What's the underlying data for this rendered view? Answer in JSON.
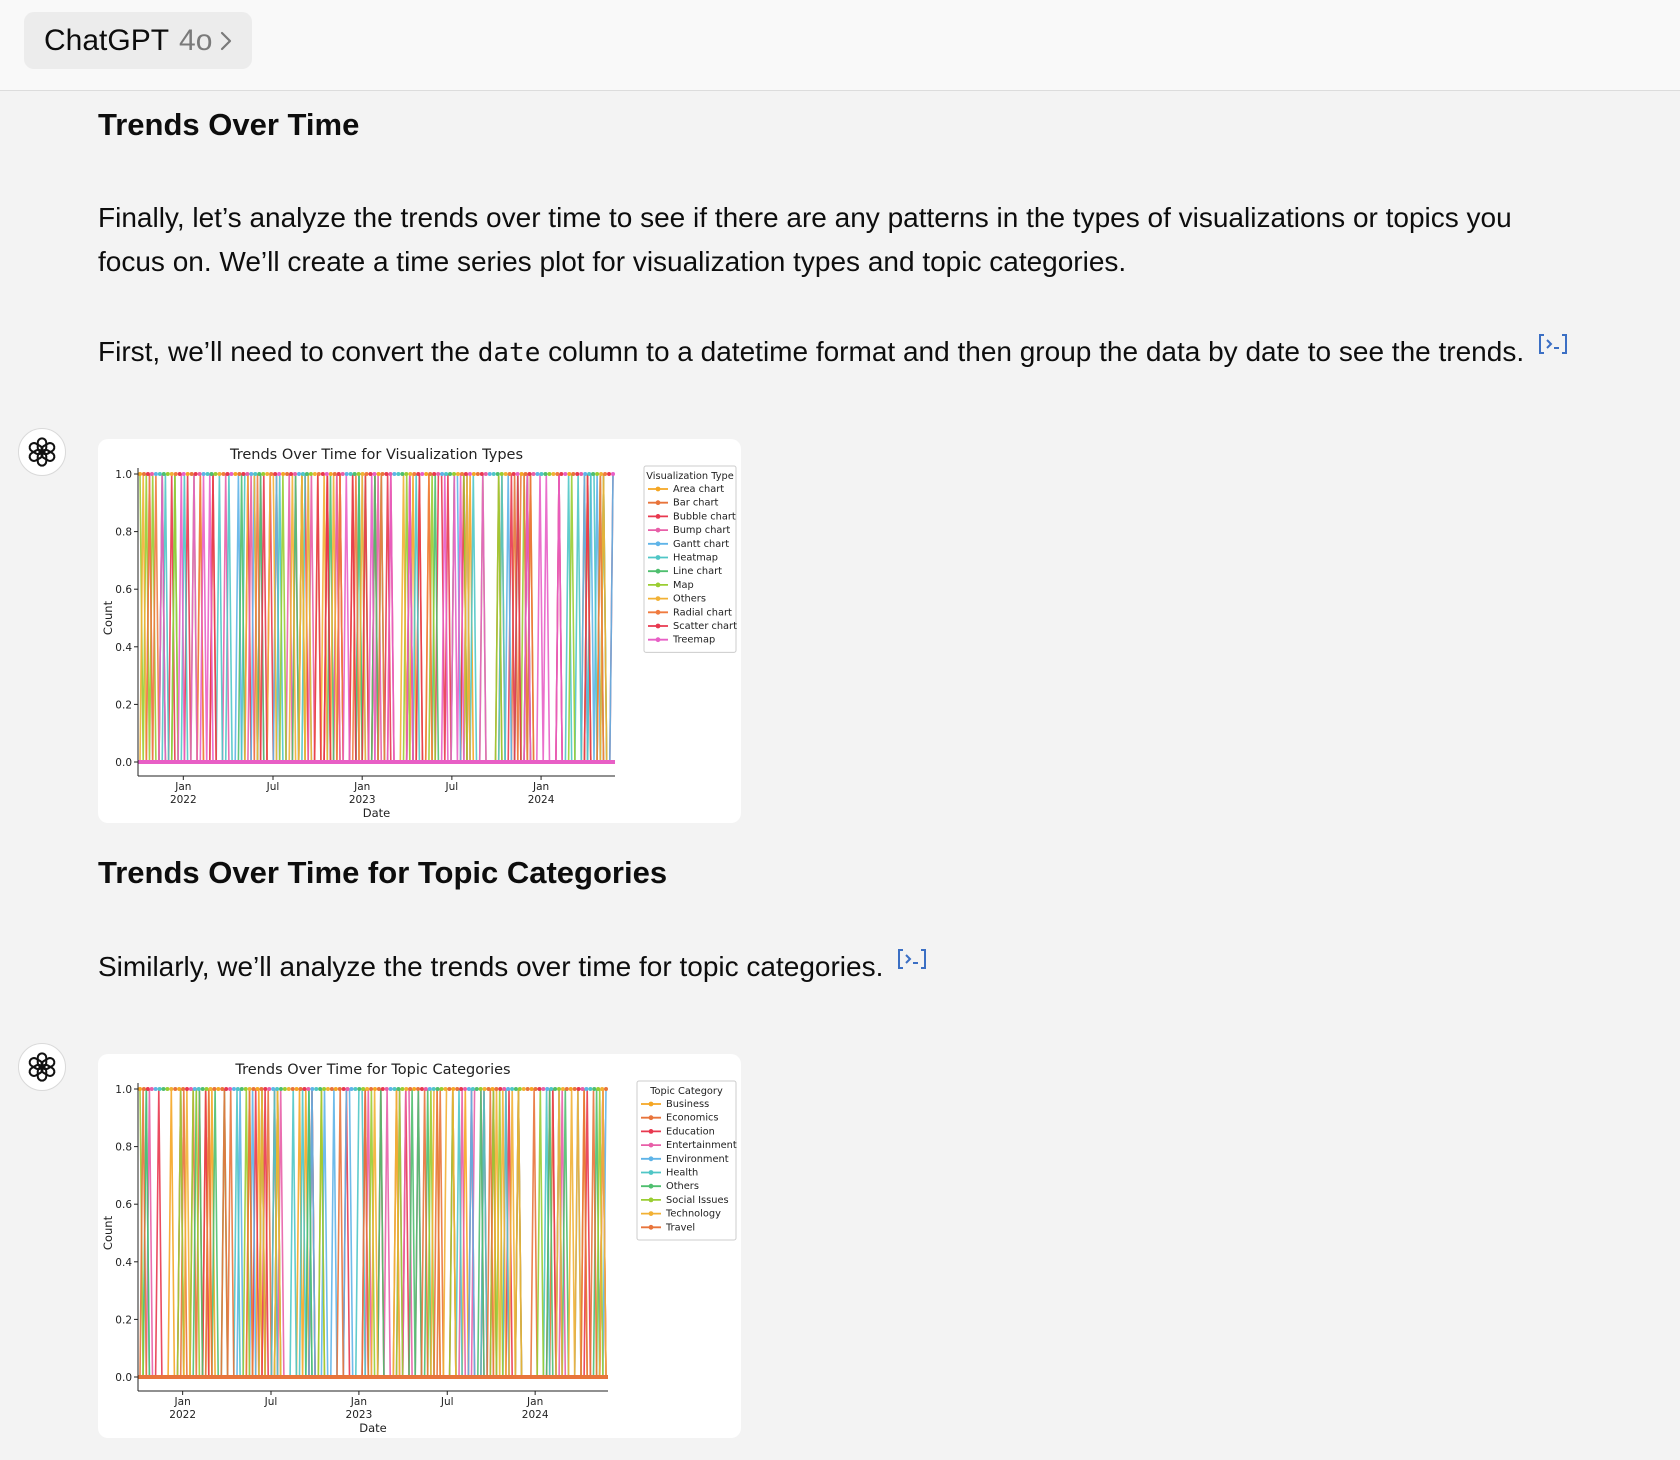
{
  "header": {
    "model_name": "ChatGPT",
    "model_version": "4o"
  },
  "message": {
    "heading1": "Trends Over Time",
    "para1_line1": "Finally, let’s analyze the trends over time to see if there are any patterns in the types of visualizations or topics you",
    "para1_line2": "focus on. We’ll create a time series plot for visualization types and topic categories.",
    "para2_before": "First, we’ll need to convert the ",
    "para2_code": "date",
    "para2_after": " column to a datetime format and then group the data by date to see the trends.",
    "heading2": "Trends Over Time for Topic Categories",
    "para3": "Similarly, we’ll analyze the trends over time for topic categories."
  },
  "icons": {
    "avatar": "openai-logo-icon",
    "code_link": "code-interpreter-icon",
    "chevron": "chevron-right-icon"
  },
  "chart_data": [
    {
      "type": "line",
      "title": "Trends Over Time for Visualization Types",
      "xlabel": "Date",
      "ylabel": "Count",
      "ylim": [
        0,
        1
      ],
      "yticks": [
        "0.0",
        "0.2",
        "0.4",
        "0.6",
        "0.8",
        "1.0"
      ],
      "xticks": [
        {
          "major": "Jan",
          "minor": "2022"
        },
        {
          "major": "Jul",
          "minor": ""
        },
        {
          "major": "Jan",
          "minor": "2023"
        },
        {
          "major": "Jul",
          "minor": ""
        },
        {
          "major": "Jan",
          "minor": "2024"
        }
      ],
      "legend_title": "Visualization Type",
      "legend_position": "right-outside",
      "series": [
        {
          "name": "Area chart",
          "color": "#f5a623"
        },
        {
          "name": "Bar chart",
          "color": "#e8743b"
        },
        {
          "name": "Bubble chart",
          "color": "#e8384f"
        },
        {
          "name": "Bump chart",
          "color": "#e85fa8"
        },
        {
          "name": "Gantt chart",
          "color": "#5fb4e8"
        },
        {
          "name": "Heatmap",
          "color": "#4fc6c6"
        },
        {
          "name": "Line chart",
          "color": "#4fbf6f"
        },
        {
          "name": "Map",
          "color": "#9acd32"
        },
        {
          "name": "Others",
          "color": "#f2b134"
        },
        {
          "name": "Radial chart",
          "color": "#f07b3f"
        },
        {
          "name": "Scatter chart",
          "color": "#e8384f"
        },
        {
          "name": "Treemap",
          "color": "#e85fc6"
        }
      ]
    },
    {
      "type": "line",
      "title": "Trends Over Time for Topic Categories",
      "xlabel": "Date",
      "ylabel": "Count",
      "ylim": [
        0,
        1
      ],
      "yticks": [
        "0.0",
        "0.2",
        "0.4",
        "0.6",
        "0.8",
        "1.0"
      ],
      "xticks": [
        {
          "major": "Jan",
          "minor": "2022"
        },
        {
          "major": "Jul",
          "minor": ""
        },
        {
          "major": "Jan",
          "minor": "2023"
        },
        {
          "major": "Jul",
          "minor": ""
        },
        {
          "major": "Jan",
          "minor": "2024"
        }
      ],
      "legend_title": "Topic Category",
      "legend_position": "right-outside",
      "series": [
        {
          "name": "Business",
          "color": "#f5a623"
        },
        {
          "name": "Economics",
          "color": "#e8743b"
        },
        {
          "name": "Education",
          "color": "#e8384f"
        },
        {
          "name": "Entertainment",
          "color": "#e85fa8"
        },
        {
          "name": "Environment",
          "color": "#5fb4e8"
        },
        {
          "name": "Health",
          "color": "#4fc6c6"
        },
        {
          "name": "Others",
          "color": "#4fbf6f"
        },
        {
          "name": "Social Issues",
          "color": "#9acd32"
        },
        {
          "name": "Technology",
          "color": "#f2b134"
        },
        {
          "name": "Travel",
          "color": "#e8743b"
        }
      ]
    }
  ]
}
